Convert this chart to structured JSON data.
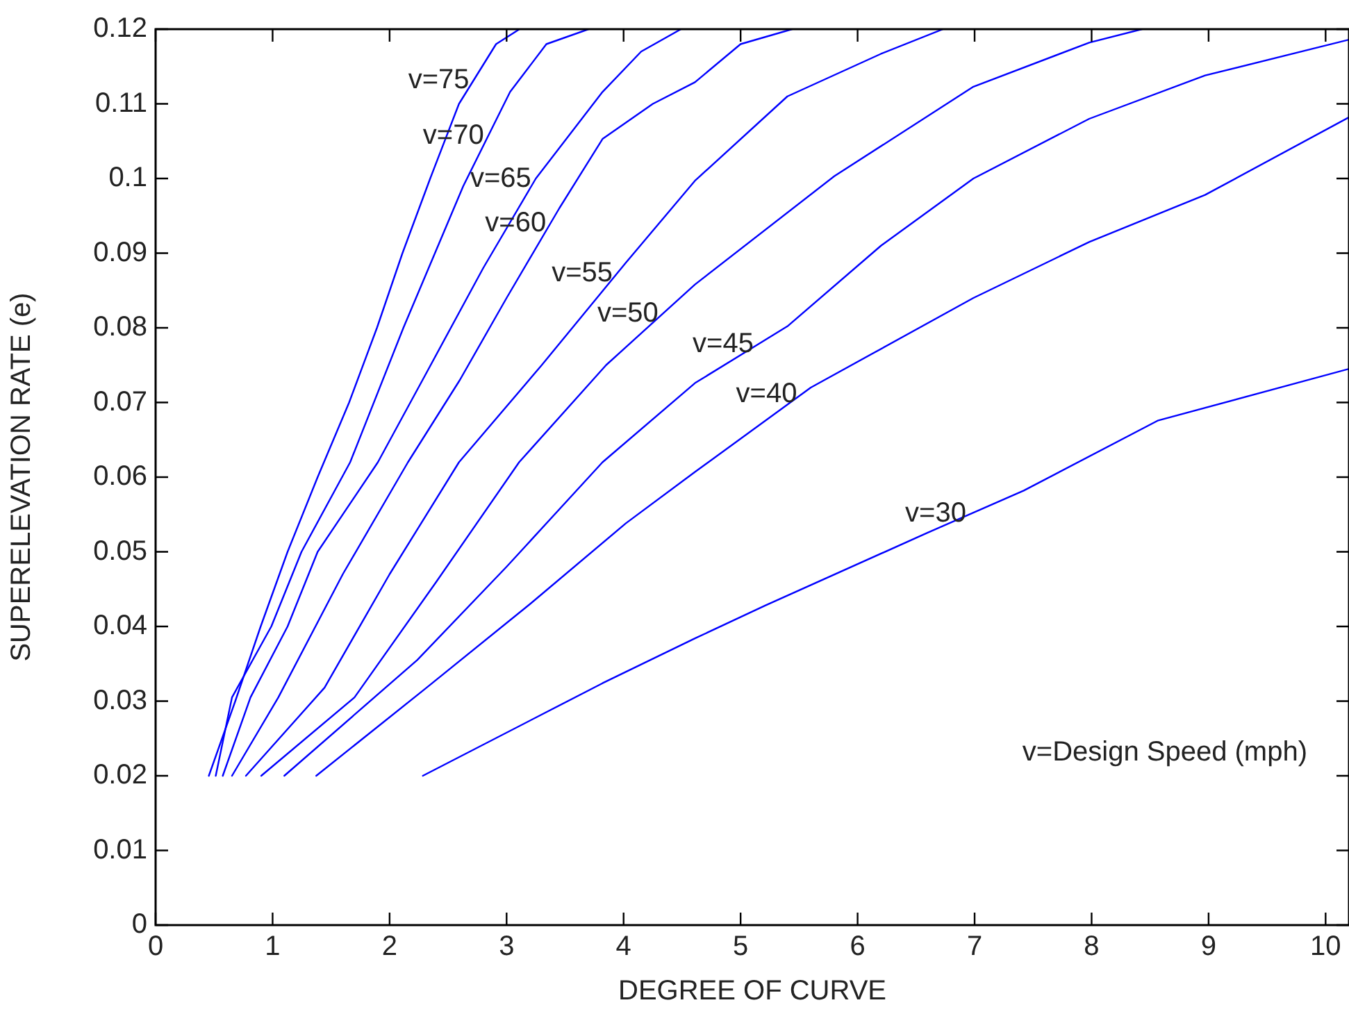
{
  "chart_data": {
    "type": "line",
    "xlabel": "DEGREE OF CURVE",
    "ylabel": "SUPERELEVATION RATE (e)",
    "xlim": [
      0,
      10.2
    ],
    "ylim": [
      0,
      0.12
    ],
    "xticks": [
      0,
      1,
      2,
      3,
      4,
      5,
      6,
      7,
      8,
      9,
      10
    ],
    "yticks": [
      0,
      0.01,
      0.02,
      0.03,
      0.04,
      0.05,
      0.06,
      0.07,
      0.08,
      0.09,
      0.1,
      0.11,
      0.12
    ],
    "grid": false,
    "legend": false,
    "marker": "none",
    "line_style": "solid",
    "series": [
      {
        "name": "v=75",
        "color": "#0000ff",
        "x": [
          0.455,
          0.681,
          0.898,
          1.128,
          1.385,
          1.654,
          1.892,
          2.11,
          2.347,
          2.593,
          2.91,
          3.11
        ],
        "values": [
          0.02,
          0.03,
          0.04,
          0.05,
          0.06,
          0.07,
          0.08,
          0.09,
          0.1,
          0.11,
          0.118,
          0.12
        ]
      },
      {
        "name": "v=70",
        "color": "#0000ff",
        "x": [
          0.514,
          0.653,
          0.989,
          1.247,
          1.663,
          2.118,
          2.63,
          3.03,
          3.34,
          3.7
        ],
        "values": [
          0.02,
          0.0305,
          0.04,
          0.05,
          0.062,
          0.08,
          0.099,
          0.1116,
          0.118,
          0.12
        ]
      },
      {
        "name": "v=65",
        "color": "#0000ff",
        "x": [
          0.574,
          0.811,
          1.128,
          1.385,
          1.9,
          2.316,
          2.8,
          3.25,
          3.82,
          4.15,
          4.49
        ],
        "values": [
          0.02,
          0.0305,
          0.04,
          0.05,
          0.062,
          0.074,
          0.088,
          0.1,
          0.1116,
          0.117,
          0.12
        ]
      },
      {
        "name": "v=60",
        "color": "#0000ff",
        "x": [
          0.653,
          1.049,
          1.6,
          2.157,
          2.6,
          3.0,
          3.45,
          3.82,
          4.25,
          4.61,
          5.0,
          5.44
        ],
        "values": [
          0.02,
          0.0305,
          0.047,
          0.062,
          0.073,
          0.084,
          0.096,
          0.1053,
          0.11,
          0.1129,
          0.118,
          0.12
        ]
      },
      {
        "name": "v=55",
        "color": "#0000ff",
        "x": [
          0.772,
          1.444,
          2.0,
          2.593,
          3.3,
          4.018,
          4.61,
          5.4,
          6.2,
          6.73
        ],
        "values": [
          0.02,
          0.0318,
          0.047,
          0.062,
          0.075,
          0.0887,
          0.0997,
          0.111,
          0.1167,
          0.12
        ]
      },
      {
        "name": "v=50",
        "color": "#0000ff",
        "x": [
          0.903,
          1.7,
          2.4,
          3.107,
          3.85,
          4.61,
          5.8,
          6.99,
          7.98,
          8.43
        ],
        "values": [
          0.02,
          0.0305,
          0.046,
          0.062,
          0.075,
          0.0858,
          0.1003,
          0.1123,
          0.1182,
          0.12
        ]
      },
      {
        "name": "v=45",
        "color": "#0000ff",
        "x": [
          1.1,
          2.236,
          3.0,
          3.82,
          4.61,
          5.4,
          6.2,
          6.99,
          7.98,
          8.97,
          10.2
        ],
        "values": [
          0.02,
          0.0355,
          0.048,
          0.062,
          0.0726,
          0.0802,
          0.091,
          0.1,
          0.108,
          0.1138,
          0.1186
        ]
      },
      {
        "name": "v=40",
        "color": "#0000ff",
        "x": [
          1.373,
          2.316,
          3.2,
          4.018,
          4.61,
          5.6,
          6.99,
          7.98,
          8.97,
          10.2
        ],
        "values": [
          0.02,
          0.0318,
          0.043,
          0.0538,
          0.0607,
          0.072,
          0.084,
          0.0915,
          0.0978,
          0.1082
        ]
      },
      {
        "name": "v=30",
        "color": "#0000ff",
        "x": [
          2.284,
          3.82,
          4.61,
          5.21,
          6.59,
          7.42,
          8.57,
          10.2
        ],
        "values": [
          0.02,
          0.0324,
          0.0384,
          0.0428,
          0.0525,
          0.0582,
          0.0676,
          0.0745
        ]
      }
    ],
    "annotations": [
      "v=Design Speed (mph)"
    ]
  }
}
